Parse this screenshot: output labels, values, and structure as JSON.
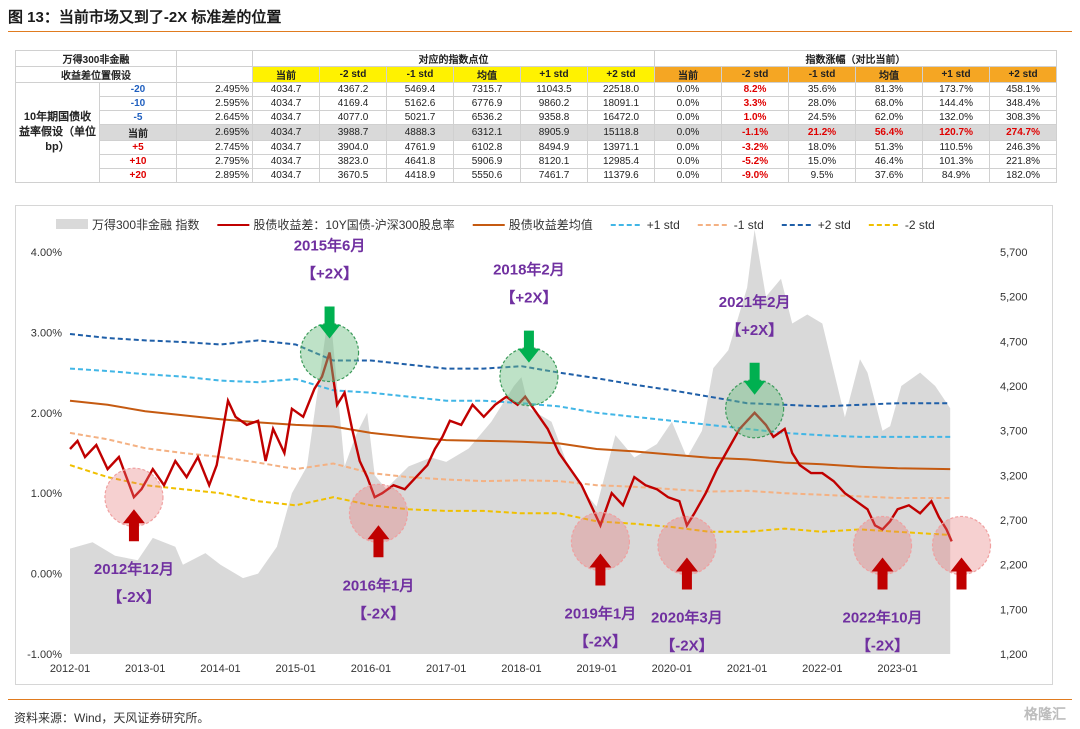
{
  "title": "图 13：当前市场又到了-2X 标准差的位置",
  "source": "资料来源：Wind，天风证券研究所。",
  "watermark": "格隆汇",
  "table": {
    "h1": "万得300非金融",
    "h2": "收益差位置假设",
    "group_points": "对应的指数点位",
    "group_change": "指数涨幅（对比当前）",
    "row_label": "10年期国债收益率假设（单位bp）",
    "cols": [
      "当前",
      "-2 std",
      "-1 std",
      "均值",
      "+1 std",
      "+2 std"
    ],
    "rows": [
      {
        "bp": "-20",
        "rate": "2.495%",
        "points": [
          "4034.7",
          "4367.2",
          "5469.4",
          "7315.7",
          "11043.5",
          "22518.0"
        ],
        "chg": [
          "0.0%",
          "8.2%",
          "35.6%",
          "81.3%",
          "173.7%",
          "458.1%"
        ]
      },
      {
        "bp": "-10",
        "rate": "2.595%",
        "points": [
          "4034.7",
          "4169.4",
          "5162.6",
          "6776.9",
          "9860.2",
          "18091.1"
        ],
        "chg": [
          "0.0%",
          "3.3%",
          "28.0%",
          "68.0%",
          "144.4%",
          "348.4%"
        ]
      },
      {
        "bp": "-5",
        "rate": "2.645%",
        "points": [
          "4034.7",
          "4077.0",
          "5021.7",
          "6536.2",
          "9358.8",
          "16472.0"
        ],
        "chg": [
          "0.0%",
          "1.0%",
          "24.5%",
          "62.0%",
          "132.0%",
          "308.3%"
        ]
      },
      {
        "bp": "当前",
        "rate": "2.695%",
        "points": [
          "4034.7",
          "3988.7",
          "4888.3",
          "6312.1",
          "8905.9",
          "15118.8"
        ],
        "chg": [
          "0.0%",
          "-1.1%",
          "21.2%",
          "56.4%",
          "120.7%",
          "274.7%"
        ]
      },
      {
        "bp": "+5",
        "rate": "2.745%",
        "points": [
          "4034.7",
          "3904.0",
          "4761.9",
          "6102.8",
          "8494.9",
          "13971.1"
        ],
        "chg": [
          "0.0%",
          "-3.2%",
          "18.0%",
          "51.3%",
          "110.5%",
          "246.3%"
        ]
      },
      {
        "bp": "+10",
        "rate": "2.795%",
        "points": [
          "4034.7",
          "3823.0",
          "4641.8",
          "5906.9",
          "8120.1",
          "12985.4"
        ],
        "chg": [
          "0.0%",
          "-5.2%",
          "15.0%",
          "46.4%",
          "101.3%",
          "221.8%"
        ]
      },
      {
        "bp": "+20",
        "rate": "2.895%",
        "points": [
          "4034.7",
          "3670.5",
          "4418.9",
          "5550.6",
          "7461.7",
          "11379.6"
        ],
        "chg": [
          "0.0%",
          "-9.0%",
          "9.5%",
          "37.6%",
          "84.9%",
          "182.0%"
        ]
      }
    ]
  },
  "chart_data": {
    "type": "line",
    "x_ticks": [
      "2012-01",
      "2013-01",
      "2014-01",
      "2015-01",
      "2016-01",
      "2017-01",
      "2018-01",
      "2019-01",
      "2020-01",
      "2021-01",
      "2022-01",
      "2023-01"
    ],
    "y_left_ticks": [
      "4.00%",
      "3.00%",
      "2.00%",
      "1.00%",
      "0.00%",
      "-1.00%"
    ],
    "y_left_range": [
      -1.0,
      4.0
    ],
    "y_right_ticks": [
      "5,700",
      "5,200",
      "4,700",
      "4,200",
      "3,700",
      "3,200",
      "2,700",
      "2,200",
      "1,700",
      "1,200"
    ],
    "y_right_range": [
      1200,
      5700
    ],
    "x_range": [
      2012.0,
      2023.75
    ],
    "legend": [
      {
        "name": "万得300非金融 指数",
        "color": "#d9d9d9"
      },
      {
        "name": "股债收益差：10Y国债-沪深300股息率",
        "color": "#c00000"
      },
      {
        "name": "股债收益差均值",
        "color": "#c55a11"
      },
      {
        "name": "+1 std",
        "color": "#41b6e6"
      },
      {
        "name": "-1 std",
        "color": "#f4b183"
      },
      {
        "name": "+2 std",
        "color": "#1f5fa8"
      },
      {
        "name": "-2 std",
        "color": "#f0c000"
      }
    ],
    "index_series": [
      [
        2012.0,
        2380
      ],
      [
        2012.3,
        2450
      ],
      [
        2012.6,
        2300
      ],
      [
        2012.9,
        2250
      ],
      [
        2013.1,
        2500
      ],
      [
        2013.4,
        2400
      ],
      [
        2013.5,
        2200
      ],
      [
        2013.8,
        2330
      ],
      [
        2014.0,
        2200
      ],
      [
        2014.3,
        2050
      ],
      [
        2014.5,
        2100
      ],
      [
        2014.75,
        2400
      ],
      [
        2014.95,
        3000
      ],
      [
        2015.15,
        3300
      ],
      [
        2015.3,
        4200
      ],
      [
        2015.45,
        5100
      ],
      [
        2015.55,
        4200
      ],
      [
        2015.65,
        3300
      ],
      [
        2015.8,
        3650
      ],
      [
        2015.95,
        3900
      ],
      [
        2016.05,
        3200
      ],
      [
        2016.2,
        3050
      ],
      [
        2016.5,
        3300
      ],
      [
        2016.8,
        3400
      ],
      [
        2017.0,
        3350
      ],
      [
        2017.3,
        3500
      ],
      [
        2017.6,
        3800
      ],
      [
        2017.9,
        4200
      ],
      [
        2018.0,
        4300
      ],
      [
        2018.1,
        3950
      ],
      [
        2018.4,
        3800
      ],
      [
        2018.6,
        3350
      ],
      [
        2018.9,
        2950
      ],
      [
        2019.0,
        2850
      ],
      [
        2019.25,
        3650
      ],
      [
        2019.5,
        3400
      ],
      [
        2019.8,
        3550
      ],
      [
        2020.0,
        3800
      ],
      [
        2020.2,
        3400
      ],
      [
        2020.4,
        3700
      ],
      [
        2020.55,
        4400
      ],
      [
        2020.75,
        4600
      ],
      [
        2021.0,
        5300
      ],
      [
        2021.1,
        5950
      ],
      [
        2021.25,
        5200
      ],
      [
        2021.45,
        5400
      ],
      [
        2021.6,
        4900
      ],
      [
        2021.8,
        5000
      ],
      [
        2022.0,
        4900
      ],
      [
        2022.2,
        4200
      ],
      [
        2022.3,
        3850
      ],
      [
        2022.5,
        4500
      ],
      [
        2022.6,
        4350
      ],
      [
        2022.8,
        3700
      ],
      [
        2022.9,
        3750
      ],
      [
        2023.05,
        4200
      ],
      [
        2023.3,
        4350
      ],
      [
        2023.5,
        4200
      ],
      [
        2023.7,
        3950
      ]
    ],
    "spread_series": [
      [
        2012.0,
        1.55
      ],
      [
        2012.1,
        1.65
      ],
      [
        2012.2,
        1.45
      ],
      [
        2012.35,
        1.6
      ],
      [
        2012.5,
        1.3
      ],
      [
        2012.65,
        1.45
      ],
      [
        2012.85,
        0.95
      ],
      [
        2012.95,
        1.05
      ],
      [
        2013.1,
        1.3
      ],
      [
        2013.25,
        1.1
      ],
      [
        2013.4,
        1.4
      ],
      [
        2013.55,
        1.2
      ],
      [
        2013.7,
        1.45
      ],
      [
        2013.85,
        1.1
      ],
      [
        2013.95,
        1.35
      ],
      [
        2014.1,
        2.15
      ],
      [
        2014.2,
        1.95
      ],
      [
        2014.35,
        1.85
      ],
      [
        2014.5,
        1.9
      ],
      [
        2014.6,
        1.4
      ],
      [
        2014.7,
        1.8
      ],
      [
        2014.85,
        1.5
      ],
      [
        2014.95,
        2.05
      ],
      [
        2015.1,
        1.95
      ],
      [
        2015.25,
        2.3
      ],
      [
        2015.35,
        2.45
      ],
      [
        2015.45,
        2.75
      ],
      [
        2015.55,
        2.1
      ],
      [
        2015.65,
        2.25
      ],
      [
        2015.75,
        1.8
      ],
      [
        2015.85,
        1.4
      ],
      [
        2015.95,
        1.2
      ],
      [
        2016.05,
        0.95
      ],
      [
        2016.15,
        1.0
      ],
      [
        2016.3,
        1.1
      ],
      [
        2016.45,
        1.05
      ],
      [
        2016.6,
        1.2
      ],
      [
        2016.75,
        1.35
      ],
      [
        2016.85,
        1.55
      ],
      [
        2016.95,
        1.7
      ],
      [
        2017.05,
        1.9
      ],
      [
        2017.2,
        1.85
      ],
      [
        2017.35,
        2.1
      ],
      [
        2017.5,
        1.95
      ],
      [
        2017.65,
        2.1
      ],
      [
        2017.8,
        2.2
      ],
      [
        2017.95,
        2.1
      ],
      [
        2018.05,
        2.2
      ],
      [
        2018.2,
        2.0
      ],
      [
        2018.35,
        1.8
      ],
      [
        2018.5,
        1.5
      ],
      [
        2018.65,
        1.3
      ],
      [
        2018.8,
        1.1
      ],
      [
        2018.95,
        0.8
      ],
      [
        2019.05,
        0.6
      ],
      [
        2019.2,
        1.0
      ],
      [
        2019.35,
        0.85
      ],
      [
        2019.5,
        1.2
      ],
      [
        2019.65,
        1.1
      ],
      [
        2019.8,
        1.05
      ],
      [
        2019.95,
        0.95
      ],
      [
        2020.1,
        0.9
      ],
      [
        2020.2,
        0.6
      ],
      [
        2020.3,
        0.75
      ],
      [
        2020.45,
        1.0
      ],
      [
        2020.6,
        1.3
      ],
      [
        2020.75,
        1.55
      ],
      [
        2020.9,
        1.8
      ],
      [
        2021.0,
        1.9
      ],
      [
        2021.1,
        2.0
      ],
      [
        2021.25,
        1.85
      ],
      [
        2021.35,
        1.7
      ],
      [
        2021.5,
        1.8
      ],
      [
        2021.6,
        1.5
      ],
      [
        2021.7,
        1.35
      ],
      [
        2021.85,
        1.25
      ],
      [
        2022.0,
        1.25
      ],
      [
        2022.15,
        1.15
      ],
      [
        2022.3,
        1.0
      ],
      [
        2022.45,
        0.9
      ],
      [
        2022.6,
        0.8
      ],
      [
        2022.7,
        0.6
      ],
      [
        2022.8,
        0.55
      ],
      [
        2022.9,
        0.65
      ],
      [
        2023.0,
        0.8
      ],
      [
        2023.15,
        0.85
      ],
      [
        2023.3,
        0.75
      ],
      [
        2023.45,
        0.9
      ],
      [
        2023.55,
        0.7
      ],
      [
        2023.65,
        0.55
      ],
      [
        2023.72,
        0.4
      ]
    ],
    "mean_series": [
      [
        2012.0,
        2.15
      ],
      [
        2012.5,
        2.1
      ],
      [
        2013.0,
        2.02
      ],
      [
        2013.5,
        1.97
      ],
      [
        2014.0,
        1.92
      ],
      [
        2014.5,
        1.88
      ],
      [
        2015.0,
        1.85
      ],
      [
        2015.5,
        1.83
      ],
      [
        2016.0,
        1.75
      ],
      [
        2016.5,
        1.7
      ],
      [
        2017.0,
        1.66
      ],
      [
        2017.5,
        1.65
      ],
      [
        2018.0,
        1.64
      ],
      [
        2018.5,
        1.62
      ],
      [
        2019.0,
        1.55
      ],
      [
        2019.5,
        1.52
      ],
      [
        2020.0,
        1.48
      ],
      [
        2020.5,
        1.44
      ],
      [
        2021.0,
        1.42
      ],
      [
        2021.5,
        1.38
      ],
      [
        2022.0,
        1.36
      ],
      [
        2022.5,
        1.33
      ],
      [
        2023.0,
        1.31
      ],
      [
        2023.7,
        1.3
      ]
    ],
    "p1_series": [
      [
        2012.0,
        2.55
      ],
      [
        2012.5,
        2.52
      ],
      [
        2013.0,
        2.48
      ],
      [
        2013.5,
        2.45
      ],
      [
        2014.0,
        2.4
      ],
      [
        2014.5,
        2.38
      ],
      [
        2015.0,
        2.42
      ],
      [
        2015.5,
        2.28
      ],
      [
        2016.0,
        2.25
      ],
      [
        2016.5,
        2.2
      ],
      [
        2017.0,
        2.15
      ],
      [
        2017.5,
        2.15
      ],
      [
        2018.0,
        2.12
      ],
      [
        2018.5,
        2.08
      ],
      [
        2019.0,
        2.0
      ],
      [
        2019.5,
        1.95
      ],
      [
        2020.0,
        1.9
      ],
      [
        2020.5,
        1.85
      ],
      [
        2021.0,
        1.8
      ],
      [
        2021.5,
        1.75
      ],
      [
        2022.0,
        1.72
      ],
      [
        2022.5,
        1.7
      ],
      [
        2023.0,
        1.7
      ],
      [
        2023.7,
        1.7
      ]
    ],
    "m1_series": [
      [
        2012.0,
        1.75
      ],
      [
        2012.5,
        1.67
      ],
      [
        2013.0,
        1.56
      ],
      [
        2013.5,
        1.5
      ],
      [
        2014.0,
        1.45
      ],
      [
        2014.5,
        1.38
      ],
      [
        2015.0,
        1.3
      ],
      [
        2015.5,
        1.37
      ],
      [
        2016.0,
        1.25
      ],
      [
        2016.5,
        1.2
      ],
      [
        2017.0,
        1.17
      ],
      [
        2017.5,
        1.15
      ],
      [
        2018.0,
        1.16
      ],
      [
        2018.5,
        1.15
      ],
      [
        2019.0,
        1.1
      ],
      [
        2019.5,
        1.08
      ],
      [
        2020.0,
        1.05
      ],
      [
        2020.5,
        1.02
      ],
      [
        2021.0,
        1.03
      ],
      [
        2021.5,
        1.0
      ],
      [
        2022.0,
        0.98
      ],
      [
        2022.5,
        0.96
      ],
      [
        2023.0,
        0.94
      ],
      [
        2023.7,
        0.94
      ]
    ],
    "p2_series": [
      [
        2012.0,
        2.98
      ],
      [
        2012.5,
        2.93
      ],
      [
        2013.0,
        2.9
      ],
      [
        2013.5,
        2.88
      ],
      [
        2014.0,
        2.85
      ],
      [
        2014.5,
        2.9
      ],
      [
        2015.0,
        2.85
      ],
      [
        2015.5,
        2.65
      ],
      [
        2016.0,
        2.65
      ],
      [
        2016.5,
        2.6
      ],
      [
        2017.0,
        2.55
      ],
      [
        2017.5,
        2.55
      ],
      [
        2018.0,
        2.58
      ],
      [
        2018.5,
        2.5
      ],
      [
        2019.0,
        2.43
      ],
      [
        2019.5,
        2.35
      ],
      [
        2020.0,
        2.28
      ],
      [
        2020.5,
        2.2
      ],
      [
        2021.0,
        2.12
      ],
      [
        2021.5,
        2.1
      ],
      [
        2022.0,
        2.08
      ],
      [
        2022.5,
        2.1
      ],
      [
        2023.0,
        2.12
      ],
      [
        2023.7,
        2.12
      ]
    ],
    "m2_series": [
      [
        2012.0,
        1.35
      ],
      [
        2012.5,
        1.2
      ],
      [
        2013.0,
        1.1
      ],
      [
        2013.5,
        1.05
      ],
      [
        2014.0,
        1.0
      ],
      [
        2014.5,
        0.9
      ],
      [
        2015.0,
        0.85
      ],
      [
        2015.5,
        0.95
      ],
      [
        2016.0,
        0.85
      ],
      [
        2016.5,
        0.8
      ],
      [
        2017.0,
        0.78
      ],
      [
        2017.5,
        0.78
      ],
      [
        2018.0,
        0.75
      ],
      [
        2018.5,
        0.75
      ],
      [
        2019.0,
        0.65
      ],
      [
        2019.5,
        0.62
      ],
      [
        2020.0,
        0.58
      ],
      [
        2020.5,
        0.52
      ],
      [
        2021.0,
        0.52
      ],
      [
        2021.5,
        0.56
      ],
      [
        2022.0,
        0.52
      ],
      [
        2022.5,
        0.55
      ],
      [
        2023.0,
        0.52
      ],
      [
        2023.7,
        0.48
      ]
    ],
    "annotations": [
      {
        "label": "2015年6月",
        "sub": "【+2X】",
        "dir": "down",
        "x": 2015.45,
        "y": 2.75
      },
      {
        "label": "2018年2月",
        "sub": "【+2X】",
        "dir": "down",
        "x": 2018.1,
        "y": 2.45
      },
      {
        "label": "2021年2月",
        "sub": "【+2X】",
        "dir": "down",
        "x": 2021.1,
        "y": 2.05
      },
      {
        "label": "2012年12月",
        "sub": "【-2X】",
        "dir": "up",
        "x": 2012.85,
        "y": 0.95
      },
      {
        "label": "2016年1月",
        "sub": "【-2X】",
        "dir": "up",
        "x": 2016.1,
        "y": 0.75
      },
      {
        "label": "2019年1月",
        "sub": "【-2X】",
        "dir": "up",
        "x": 2019.05,
        "y": 0.4
      },
      {
        "label": "2020年3月",
        "sub": "【-2X】",
        "dir": "up",
        "x": 2020.2,
        "y": 0.35
      },
      {
        "label": "2022年10月",
        "sub": "【-2X】",
        "dir": "up",
        "x": 2022.8,
        "y": 0.35
      },
      {
        "label": "",
        "sub": "",
        "dir": "up",
        "x": 2023.85,
        "y": 0.35
      }
    ]
  }
}
